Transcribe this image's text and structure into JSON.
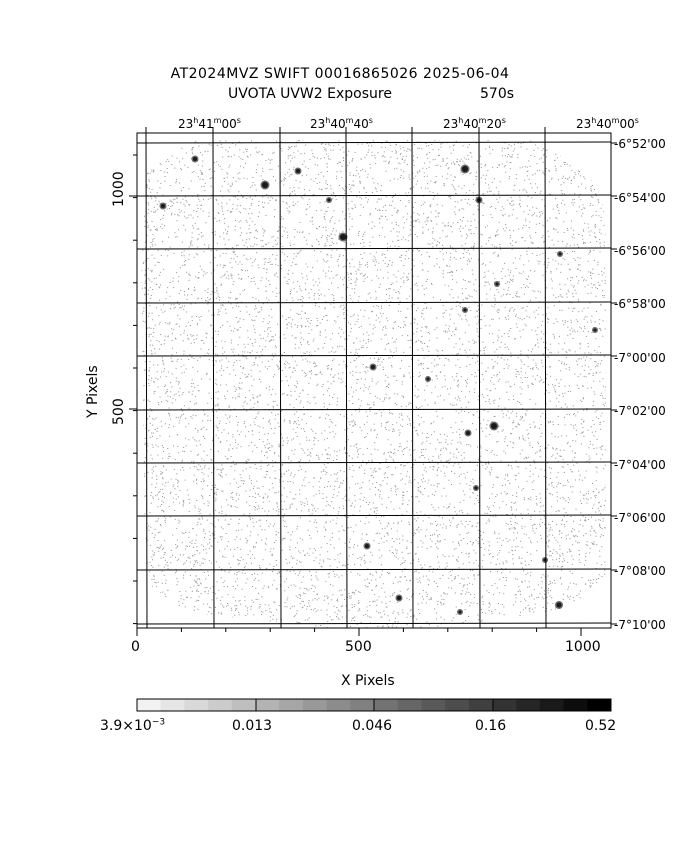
{
  "title": {
    "line1": "AT2024MVZ SWIFT 00016865026 2025-06-04",
    "line2_label": "UVOTA UVW2 Exposure",
    "line2_exposure": "570s"
  },
  "ra_ticks": [
    {
      "h": "23",
      "m": "41",
      "s": "00"
    },
    {
      "h": "23",
      "m": "40",
      "s": "40"
    },
    {
      "h": "23",
      "m": "40",
      "s": "20"
    },
    {
      "h": "23",
      "m": "40",
      "s": "00"
    }
  ],
  "dec_ticks": [
    "-6°52'00",
    "-6°54'00",
    "-6°56'00",
    "-6°58'00",
    "-7°00'00",
    "-7°02'00",
    "-7°04'00",
    "-7°06'00",
    "-7°08'00",
    "-7°10'00"
  ],
  "x_axis": {
    "label": "X Pixels",
    "ticks": [
      "0",
      "500",
      "1000"
    ]
  },
  "y_axis": {
    "label": "Y Pixels",
    "ticks": [
      "500",
      "1000"
    ]
  },
  "colorbar": {
    "label_min_mantissa": "3.9×10",
    "label_min_exp": "−3",
    "labels": [
      "0.013",
      "0.046",
      "0.16",
      "0.52"
    ],
    "colors": [
      "#f2f2f2",
      "#e6e6e6",
      "#d9d9d9",
      "#cccccc",
      "#bfbfbf",
      "#b3b3b3",
      "#a6a6a6",
      "#999999",
      "#8c8c8c",
      "#808080",
      "#737373",
      "#666666",
      "#595959",
      "#4d4d4d",
      "#404040",
      "#333333",
      "#262626",
      "#1a1a1a",
      "#0d0d0d",
      "#000000"
    ]
  },
  "image": {
    "background": "#ffffff",
    "noise_color": "#9a9a9a",
    "grid_color": "#000000"
  }
}
